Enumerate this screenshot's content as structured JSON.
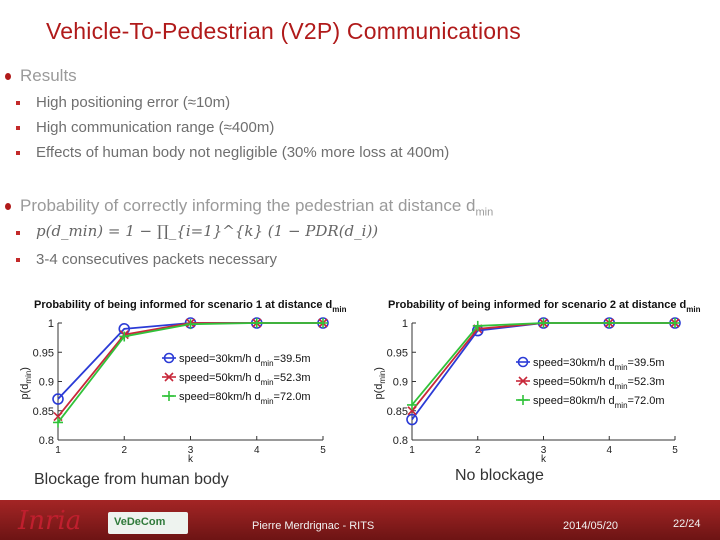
{
  "slide": {
    "title": "Vehicle-To-Pedestrian (V2P) Communications",
    "results_heading": "Results",
    "results": [
      "High positioning error (≈10m)",
      "High communication range (≈400m)",
      "Effects of human body not negligible (30% more loss at 400m)"
    ],
    "prob_heading": "Probability of correctly informing the pedestrian at distance d",
    "prob_heading_sub": "min",
    "formula": "p(d_min) = 1 − ∏_{i=1}^{k} (1 − PDR(d_i))",
    "consecutive": "3-4 consecutives packets necessary",
    "caption_left": "Blockage from human body",
    "caption_right": "No blockage",
    "logo_text": "Inria",
    "logo_small": "VeDeCom",
    "colors": {
      "title": "#b01a1a",
      "footer": "#8e1d1d"
    }
  },
  "footer": {
    "author": "Pierre Merdrignac - RITS",
    "date": "2014/05/20",
    "page": "22/24"
  },
  "chart_data": [
    {
      "type": "line",
      "title": "Probability of being informed for scenario 1 at distance d",
      "title_sub": "min",
      "xlabel": "k",
      "ylabel": "p(d",
      "ylabel_sub": "min",
      "x": [
        1,
        2,
        3,
        4,
        5
      ],
      "xlim": [
        1,
        5
      ],
      "ylim": [
        0.8,
        1
      ],
      "yticks": [
        0.8,
        0.85,
        0.9,
        0.95,
        1
      ],
      "ytick_labels": [
        "0.8",
        "0.85",
        "0.9",
        "0.95",
        "1"
      ],
      "xtick_labels": [
        "1",
        "2",
        "3",
        "4",
        "5"
      ],
      "grid": false,
      "legend_position": "center-right",
      "series": [
        {
          "name": "speed=30km/h d",
          "name_sub": "min",
          "name_suffix": "=39.5m",
          "marker": "o",
          "color": "#2b3bd6",
          "values": [
            0.87,
            0.99,
            1.0,
            1.0,
            1.0
          ]
        },
        {
          "name": "speed=50km/h d",
          "name_sub": "min",
          "name_suffix": "=52.3m",
          "marker": "x",
          "color": "#c8283a",
          "values": [
            0.84,
            0.98,
            1.0,
            1.0,
            1.0
          ]
        },
        {
          "name": "speed=80km/h d",
          "name_sub": "min",
          "name_suffix": "=72.0m",
          "marker": "+",
          "color": "#31c23a",
          "values": [
            0.83,
            0.977,
            0.998,
            1.0,
            1.0
          ]
        }
      ]
    },
    {
      "type": "line",
      "title": "Probability of being informed for scenario 2 at distance d",
      "title_sub": "min",
      "xlabel": "k",
      "ylabel": "p(d",
      "ylabel_sub": "min",
      "x": [
        1,
        2,
        3,
        4,
        5
      ],
      "xlim": [
        1,
        5
      ],
      "ylim": [
        0.8,
        1
      ],
      "yticks": [
        0.8,
        0.85,
        0.9,
        0.95,
        1
      ],
      "ytick_labels": [
        "0.8",
        "0.85",
        "0.9",
        "0.95",
        "1"
      ],
      "xtick_labels": [
        "1",
        "2",
        "3",
        "4",
        "5"
      ],
      "grid": false,
      "legend_position": "center-right",
      "series": [
        {
          "name": "speed=30km/h d",
          "name_sub": "min",
          "name_suffix": "=39.5m",
          "marker": "o",
          "color": "#2b3bd6",
          "values": [
            0.835,
            0.987,
            1.0,
            1.0,
            1.0
          ]
        },
        {
          "name": "speed=50km/h d",
          "name_sub": "min",
          "name_suffix": "=52.3m",
          "marker": "x",
          "color": "#c8283a",
          "values": [
            0.85,
            0.99,
            1.0,
            1.0,
            1.0
          ]
        },
        {
          "name": "speed=80km/h d",
          "name_sub": "min",
          "name_suffix": "=72.0m",
          "marker": "+",
          "color": "#31c23a",
          "values": [
            0.86,
            0.995,
            1.0,
            1.0,
            1.0
          ]
        }
      ]
    }
  ]
}
